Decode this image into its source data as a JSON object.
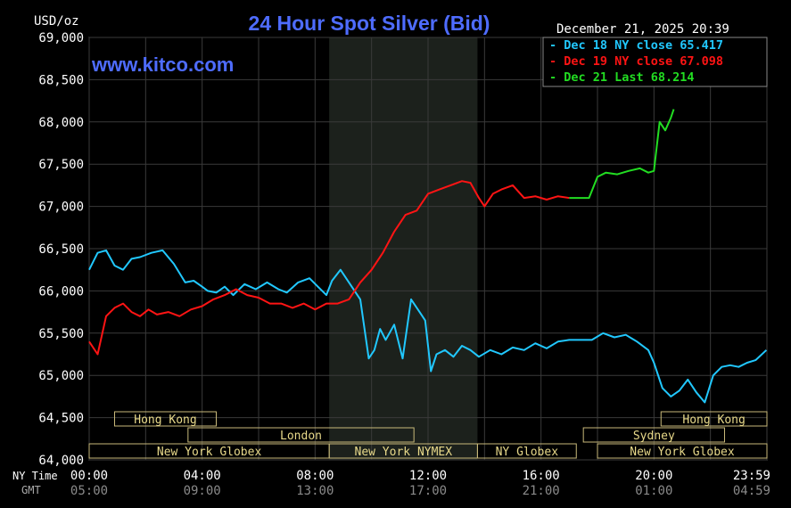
{
  "chart_data": {
    "type": "line",
    "title": "24 Hour Spot Silver (Bid)",
    "units_label": "USD/oz",
    "watermark": "www.kitco.com",
    "timestamp": "December 21, 2025 20:39",
    "ylim": [
      64.0,
      69.0
    ],
    "y_ticks": [
      "64,000",
      "64,500",
      "65,000",
      "65,500",
      "66,000",
      "66,500",
      "67,000",
      "67,500",
      "68,000",
      "68,500",
      "69,000"
    ],
    "y_tick_values": [
      64.0,
      64.5,
      65.0,
      65.5,
      66.0,
      66.5,
      67.0,
      67.5,
      68.0,
      68.5,
      69.0
    ],
    "xlim": [
      0,
      24
    ],
    "x_row_labels": {
      "ny": "NY Time",
      "gmt": "GMT"
    },
    "x_ticks_ny": [
      "00:00",
      "04:00",
      "08:00",
      "12:00",
      "16:00",
      "20:00",
      "23:59"
    ],
    "x_ticks_gmt": [
      "05:00",
      "09:00",
      "13:00",
      "17:00",
      "21:00",
      "01:00",
      "04:59"
    ],
    "x_tick_hours": [
      0,
      4,
      8,
      12,
      16,
      20,
      23.98
    ],
    "shaded_session": [
      8.5,
      13.75
    ],
    "grid": true,
    "legend_placement": "top-right",
    "legend": [
      {
        "text": "Dec 18 NY close 65.417",
        "color": "#21c8ff"
      },
      {
        "text": "Dec 19 NY close 67.098",
        "color": "#ff1414"
      },
      {
        "text": "Dec 21 Last 68.214",
        "color": "#22dd22"
      }
    ],
    "sessions": [
      {
        "label": "Hong Kong",
        "start": 0.9,
        "end": 4.5,
        "row": 0
      },
      {
        "label": "London",
        "start": 3.5,
        "end": 11.5,
        "row": 1
      },
      {
        "label": "New York Globex",
        "start": 0.0,
        "end": 8.5,
        "row": 2
      },
      {
        "label": "New York NYMEX",
        "start": 8.5,
        "end": 13.75,
        "row": 2
      },
      {
        "label": "NY Globex",
        "start": 13.75,
        "end": 17.25,
        "row": 2
      },
      {
        "label": "Hong Kong",
        "start": 20.25,
        "end": 24.0,
        "row": 0
      },
      {
        "label": "Sydney",
        "start": 17.5,
        "end": 22.5,
        "row": 1
      },
      {
        "label": "New York Globex",
        "start": 18.0,
        "end": 24.0,
        "row": 2
      }
    ],
    "series": [
      {
        "name": "Dec 18",
        "color": "#21c8ff",
        "x": [
          0,
          0.3,
          0.6,
          0.9,
          1.2,
          1.5,
          1.8,
          2.2,
          2.6,
          3.0,
          3.4,
          3.7,
          4.0,
          4.2,
          4.5,
          4.8,
          5.1,
          5.5,
          5.9,
          6.3,
          6.7,
          7.0,
          7.4,
          7.8,
          8.1,
          8.4,
          8.6,
          8.9,
          9.2,
          9.6,
          9.9,
          10.1,
          10.3,
          10.5,
          10.8,
          11.1,
          11.4,
          11.7,
          11.9,
          12.1,
          12.3,
          12.6,
          12.9,
          13.2,
          13.5,
          13.8,
          14.2,
          14.6,
          15.0,
          15.4,
          15.8,
          16.2,
          16.6,
          17.0,
          17.4,
          17.8,
          18.2,
          18.6,
          19.0,
          19.4,
          19.8,
          20.0,
          20.3,
          20.6,
          20.9,
          21.2,
          21.5,
          21.8,
          22.1,
          22.4,
          22.7,
          23.0,
          23.3,
          23.6,
          23.98
        ],
        "y": [
          66.25,
          66.45,
          66.48,
          66.3,
          66.25,
          66.38,
          66.4,
          66.45,
          66.48,
          66.32,
          66.1,
          66.12,
          66.05,
          66.0,
          65.98,
          66.05,
          65.95,
          66.08,
          66.02,
          66.1,
          66.02,
          65.98,
          66.1,
          66.15,
          66.05,
          65.95,
          66.12,
          66.25,
          66.1,
          65.9,
          65.2,
          65.3,
          65.55,
          65.42,
          65.6,
          65.2,
          65.9,
          65.75,
          65.65,
          65.05,
          65.25,
          65.3,
          65.22,
          65.35,
          65.3,
          65.22,
          65.3,
          65.25,
          65.33,
          65.3,
          65.38,
          65.32,
          65.4,
          65.42,
          65.42,
          65.42,
          65.5,
          65.45,
          65.48,
          65.4,
          65.3,
          65.15,
          64.85,
          64.75,
          64.82,
          64.95,
          64.8,
          64.68,
          65.0,
          65.1,
          65.12,
          65.1,
          65.15,
          65.18,
          65.3
        ]
      },
      {
        "name": "Dec 19",
        "color": "#ff1414",
        "x": [
          0,
          0.3,
          0.6,
          0.9,
          1.2,
          1.5,
          1.8,
          2.1,
          2.4,
          2.8,
          3.2,
          3.6,
          4.0,
          4.4,
          4.8,
          5.2,
          5.6,
          6.0,
          6.4,
          6.8,
          7.2,
          7.6,
          8.0,
          8.4,
          8.8,
          9.2,
          9.6,
          10.0,
          10.4,
          10.8,
          11.2,
          11.6,
          12.0,
          12.4,
          12.8,
          13.2,
          13.5,
          13.8,
          14.0,
          14.3,
          14.6,
          15.0,
          15.4,
          15.8,
          16.2,
          16.6,
          17.0
        ],
        "y": [
          65.4,
          65.25,
          65.7,
          65.8,
          65.85,
          65.75,
          65.7,
          65.78,
          65.72,
          65.75,
          65.7,
          65.78,
          65.82,
          65.9,
          65.95,
          66.02,
          65.95,
          65.92,
          65.85,
          65.85,
          65.8,
          65.85,
          65.78,
          65.85,
          65.85,
          65.9,
          66.1,
          66.25,
          66.45,
          66.7,
          66.9,
          66.95,
          67.15,
          67.2,
          67.25,
          67.3,
          67.28,
          67.1,
          67.0,
          67.15,
          67.2,
          67.25,
          67.1,
          67.12,
          67.08,
          67.12,
          67.1
        ]
      },
      {
        "name": "Dec 21",
        "color": "#22dd22",
        "x": [
          17.0,
          17.4,
          17.7,
          18.0,
          18.3,
          18.7,
          19.1,
          19.5,
          19.8,
          20.0,
          20.2,
          20.4,
          20.6,
          20.7
        ],
        "y": [
          67.1,
          67.1,
          67.1,
          67.35,
          67.4,
          67.38,
          67.42,
          67.45,
          67.4,
          67.42,
          68.0,
          67.9,
          68.05,
          68.15
        ]
      }
    ]
  }
}
